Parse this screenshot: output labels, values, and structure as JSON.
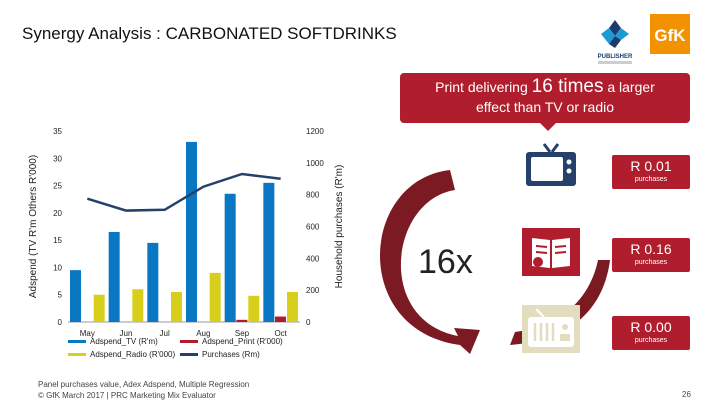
{
  "page": {
    "title": "Synergy Analysis : CARBONATED SOFTDRINKS",
    "callout_pre": "Print delivering ",
    "callout_big": "16 times",
    "callout_post": " a larger",
    "callout_line2": "effect than TV or radio",
    "times_label": "16x",
    "footer_line1": "Panel purchases value, Adex Adspend, Multiple Regression",
    "footer_line2": "© GfK March 2017 | PRC Marketing Mix Evaluator",
    "page_number": "26",
    "logo_publisher_text": "PUBLISHER",
    "logo_gfk_text": "GfK"
  },
  "media": [
    {
      "name": "TV",
      "icon": "tv-icon",
      "value": "R 0.01",
      "unit": "purchases"
    },
    {
      "name": "Print",
      "icon": "magazine-icon",
      "value": "R 0.16",
      "unit": "purchases"
    },
    {
      "name": "Radio",
      "icon": "radio-icon",
      "value": "R 0.00",
      "unit": "purchases"
    }
  ],
  "colors": {
    "tv": "#0a77c2",
    "print": "#b01e2d",
    "radio": "#d7cf1c",
    "purchases": "#25406b",
    "accent": "#b01e2d"
  },
  "chart_data": {
    "type": "bar",
    "categories": [
      "May",
      "Jun",
      "Jul",
      "Aug",
      "Sep",
      "Oct"
    ],
    "series": [
      {
        "name": "Adspend_TV (R'm)",
        "axis": "left",
        "values": [
          9.5,
          16.5,
          14.5,
          33,
          23.5,
          25.5
        ]
      },
      {
        "name": "Adspend_Radio (R'000)",
        "axis": "left",
        "values": [
          5,
          6,
          5.5,
          9,
          4.8,
          5.5
        ]
      },
      {
        "name": "Adspend_Print (R'000)",
        "axis": "left",
        "values": [
          0,
          0,
          0,
          0,
          0.4,
          1
        ]
      },
      {
        "name": "Purchases (Rm)",
        "axis": "right",
        "type": "line",
        "values": [
          775,
          700,
          705,
          850,
          930,
          900
        ]
      }
    ],
    "ylabel": "Adspend (TV R'm Others R'000)",
    "y2label": "Household purchases (R'm)",
    "ylim": [
      0,
      35
    ],
    "yticks": [
      "0",
      "5",
      "10",
      "15",
      "20",
      "25",
      "30",
      "35"
    ],
    "y2lim": [
      0,
      1200
    ],
    "y2ticks": [
      "0",
      "200",
      "400",
      "600",
      "800",
      "1000",
      "1200"
    ],
    "legend": "bottom"
  }
}
